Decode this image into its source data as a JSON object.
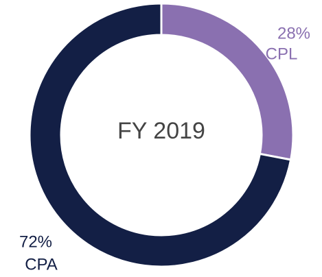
{
  "chart_data": {
    "type": "donut",
    "center_label": "FY 2019",
    "categories": [
      "CPL",
      "CPA"
    ],
    "values": [
      28,
      72
    ],
    "value_labels": [
      "28%",
      "72%"
    ],
    "colors": [
      "#8a70b0",
      "#131f45"
    ]
  }
}
